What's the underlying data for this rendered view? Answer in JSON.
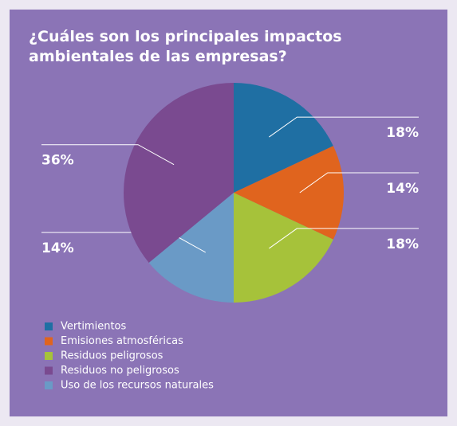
{
  "chart_data": {
    "type": "pie",
    "title": "¿Cuáles son los principales impactos ambientales de las empresas?",
    "categories": [
      "Vertimientos",
      "Emisiones atmosféricas",
      "Residuos peligrosos",
      "Residuos no peligrosos",
      "Uso de los recursos naturales"
    ],
    "values": [
      18,
      14,
      18,
      36,
      14
    ],
    "value_labels": [
      "18%",
      "14%",
      "18%",
      "36%",
      "14%"
    ],
    "colors": [
      "#1f6fa3",
      "#e0641e",
      "#a6c23a",
      "#7a4a90",
      "#6a9ac6"
    ]
  }
}
